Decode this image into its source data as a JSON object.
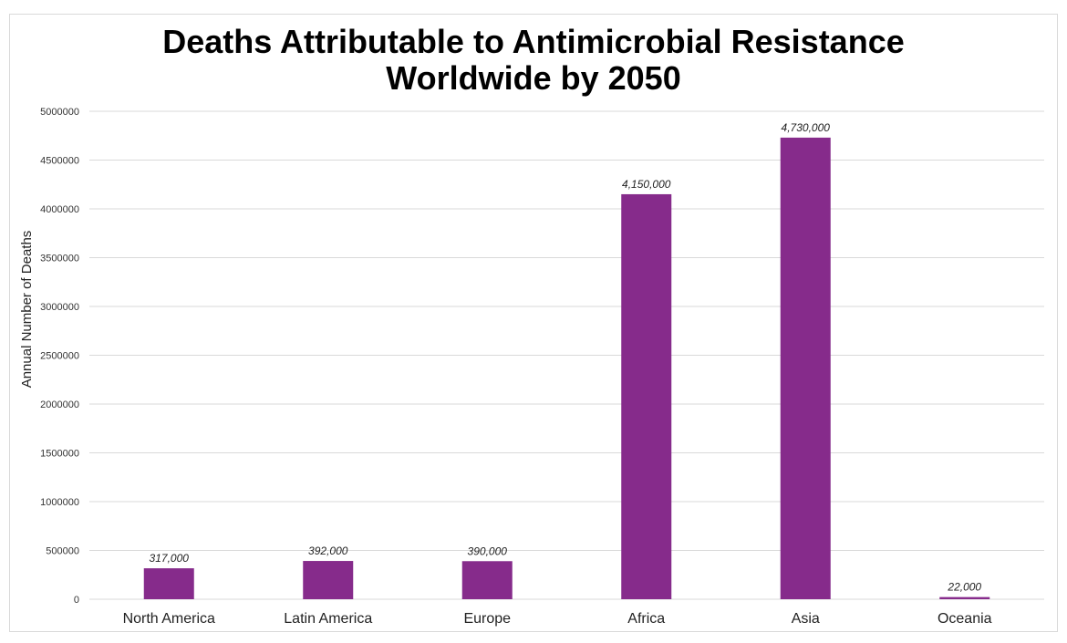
{
  "chart_data": {
    "type": "bar",
    "title_line1": "Deaths Attributable to Antimicrobial Resistance",
    "title_line2": "Worldwide by 2050",
    "xlabel": "",
    "ylabel": "Annual Number of Deaths",
    "categories": [
      "North America",
      "Latin America",
      "Europe",
      "Africa",
      "Asia",
      "Oceania"
    ],
    "values": [
      317000,
      392000,
      390000,
      4150000,
      4730000,
      22000
    ],
    "data_labels": [
      "317,000",
      "392,000",
      "390,000",
      "4,150,000",
      "4,730,000",
      "22,000"
    ],
    "yticks": [
      0,
      500000,
      1000000,
      1500000,
      2000000,
      2500000,
      3000000,
      3500000,
      4000000,
      4500000,
      5000000
    ],
    "ylim": [
      0,
      5000000
    ],
    "grid": true,
    "legend": "none",
    "colors": {
      "bar": "#862b8b",
      "grid": "#d9d9d9"
    }
  }
}
